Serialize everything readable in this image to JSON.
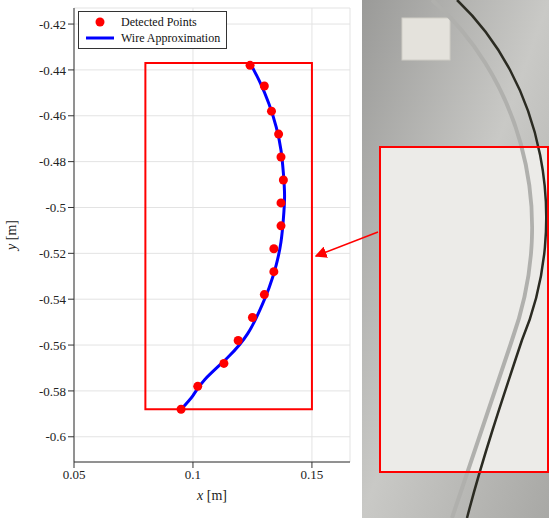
{
  "chart_data": {
    "type": "scatter",
    "xlabel": "x [m]",
    "ylabel": "y [m]",
    "xlim": [
      0.05,
      0.166
    ],
    "ylim": [
      -0.611,
      -0.413
    ],
    "xticks": [
      0.05,
      0.1,
      0.15
    ],
    "yticks": [
      -0.42,
      -0.44,
      -0.46,
      -0.48,
      -0.5,
      -0.52,
      -0.54,
      -0.56,
      -0.58,
      -0.6
    ],
    "grid": true,
    "legend": "upper left",
    "series": [
      {
        "name": "Detected Points",
        "type": "scatter",
        "color": "#ff0000",
        "marker": "circle",
        "x": [
          0.124,
          0.13,
          0.133,
          0.136,
          0.137,
          0.138,
          0.137,
          0.137,
          0.134,
          0.134,
          0.13,
          0.125,
          0.119,
          0.113,
          0.102,
          0.095
        ],
        "values": [
          -0.438,
          -0.447,
          -0.458,
          -0.468,
          -0.478,
          -0.488,
          -0.498,
          -0.508,
          -0.518,
          -0.528,
          -0.538,
          -0.548,
          -0.558,
          -0.568,
          -0.578,
          -0.588
        ]
      },
      {
        "name": "Wire Approximation",
        "type": "line",
        "color": "#0000ff",
        "line_style": "solid",
        "x": [
          0.124,
          0.128,
          0.132,
          0.135,
          0.137,
          0.138,
          0.1385,
          0.138,
          0.137,
          0.135,
          0.132,
          0.128,
          0.123,
          0.115,
          0.105,
          0.1,
          0.095
        ],
        "values": [
          -0.437,
          -0.445,
          -0.455,
          -0.465,
          -0.475,
          -0.485,
          -0.495,
          -0.505,
          -0.515,
          -0.525,
          -0.535,
          -0.545,
          -0.555,
          -0.565,
          -0.575,
          -0.582,
          -0.588
        ]
      }
    ],
    "highlight_box": {
      "x": [
        0.08,
        0.15
      ],
      "y": [
        -0.588,
        -0.437
      ],
      "color": "#ff0000"
    }
  }
}
